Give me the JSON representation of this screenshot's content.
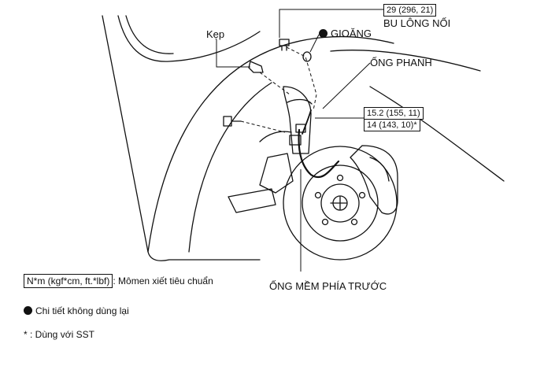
{
  "labels": {
    "clip": "Kẹp",
    "gasket": "GIOĂNG",
    "union_bolt": "BU LÔNG NỐI",
    "brake_line": "ỐNG PHANH",
    "front_flexible_hose": "ỐNG MỀM PHÍA TRƯỚC"
  },
  "torque": {
    "union_bolt": "29 (296, 21)",
    "brake_line_1": "15.2 (155, 11)",
    "brake_line_2": "14 (143, 10)*"
  },
  "legend": {
    "torque_unit": "N*m (kgf*cm, ft.*lbf)",
    "torque_desc": ": Mômen xiết tiêu chuẩn",
    "non_reusable": "Chi tiết không dùng lại",
    "sst_note": "* : Dùng với SST"
  }
}
